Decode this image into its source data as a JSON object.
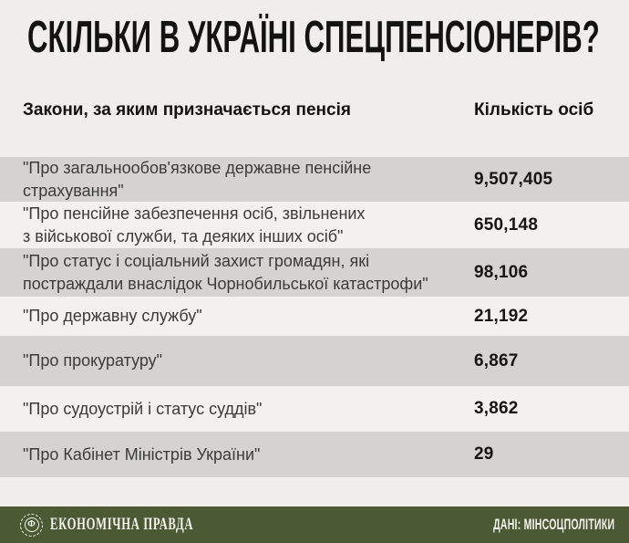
{
  "title": "СКІЛЬКИ В УКРАЇНІ СПЕЦПЕНСІОНЕРІВ?",
  "table": {
    "header": {
      "law": "Закони, за яким призначається пенсія",
      "count": "Кількість осіб"
    },
    "rows": [
      {
        "law": "\"Про загальнообов'язкове державне пенсійне\nстрахування\"",
        "count": "9,507,405"
      },
      {
        "law": "\"Про пенсійне забезпечення осіб, звільнених\nз військової служби, та деяких інших осіб\"",
        "count": "650,148"
      },
      {
        "law": "\"Про статус і соціальний захист громадян, які\nпостраждали внаслідок Чорнобильської катастрофи\"",
        "count": "98,106"
      },
      {
        "law": "\"Про державну службу\"",
        "count": "21,192"
      },
      {
        "law": "\"Про прокуратуру\"",
        "count": "6,867"
      },
      {
        "law": "\"Про судоустрій і статус суддів\"",
        "count": "3,862"
      },
      {
        "law": "\"Про Кабінет Міністрів України\"",
        "count": "29"
      }
    ]
  },
  "footer": {
    "brand": "ЕКОНОМІЧНА ПРАВДА",
    "brand_icon": "coin-hryvnia-icon",
    "coin_glyph": "Ф",
    "source": "ДАНІ: МІНСОЦПОЛІТИКИ"
  },
  "colors": {
    "background": "#efeeec",
    "row_dark": "#d4d3d1",
    "row_light": "#f2f1ef",
    "footer_green": "#4b5a33",
    "title_text": "#131313",
    "label_text": "#3b3b3b",
    "value_text": "#151515"
  },
  "chart_data": {
    "type": "table",
    "title": "СКІЛЬКИ В УКРАЇНІ СПЕЦПЕНСІОНЕРІВ?",
    "columns": [
      "Закони, за яким призначається пенсія",
      "Кількість осіб"
    ],
    "categories": [
      "Про загальнообов'язкове державне пенсійне страхування",
      "Про пенсійне забезпечення осіб, звільнених з військової служби, та деяких інших осіб",
      "Про статус і соціальний захист громадян, які постраждали внаслідок Чорнобильської катастрофи",
      "Про державну службу",
      "Про прокуратуру",
      "Про судоустрій і статус суддів",
      "Про Кабінет Міністрів України"
    ],
    "values": [
      9507405,
      650148,
      98106,
      21192,
      6867,
      3862,
      29
    ],
    "source": "ДАНІ: МІНСОЦПОЛІТИКИ",
    "legend_position": "none",
    "grid": false
  }
}
